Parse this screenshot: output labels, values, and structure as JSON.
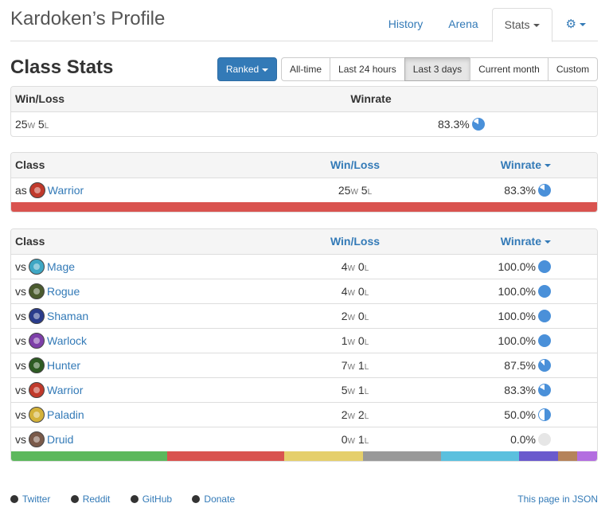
{
  "header": {
    "title": "Kardoken’s Profile",
    "tabs": [
      {
        "label": "History",
        "active": false
      },
      {
        "label": "Arena",
        "active": false
      },
      {
        "label": "Stats",
        "active": true
      }
    ],
    "settings_icon": "gear-icon"
  },
  "section": {
    "title": "Class Stats",
    "mode_label": "Ranked",
    "time_filters": [
      "All-time",
      "Last 24 hours",
      "Last 3 days",
      "Current month",
      "Custom"
    ],
    "active_time_filter": "Last 3 days"
  },
  "overall": {
    "headers": {
      "wl": "Win/Loss",
      "wr": "Winrate"
    },
    "wins": "25",
    "losses": "5",
    "winrate": "83.3%",
    "winrate_value": 0.833
  },
  "as_table": {
    "headers": {
      "cls": "Class",
      "wl": "Win/Loss",
      "wr": "Winrate"
    },
    "rows": [
      {
        "prefix": "as",
        "cls": "Warrior",
        "icon": "warrior-icon",
        "color": "#c0392b",
        "wins": "25",
        "losses": "5",
        "winrate": "83.3%",
        "winrate_value": 0.833
      }
    ],
    "bar": [
      {
        "cls": "Warrior",
        "color": "#d9534f",
        "share": 1.0
      }
    ]
  },
  "vs_table": {
    "headers": {
      "cls": "Class",
      "wl": "Win/Loss",
      "wr": "Winrate"
    },
    "rows": [
      {
        "prefix": "vs",
        "cls": "Mage",
        "icon": "mage-icon",
        "color": "#3fa7c4",
        "wins": "4",
        "losses": "0",
        "winrate": "100.0%",
        "winrate_value": 1.0
      },
      {
        "prefix": "vs",
        "cls": "Rogue",
        "icon": "rogue-icon",
        "color": "#4b5b2e",
        "wins": "4",
        "losses": "0",
        "winrate": "100.0%",
        "winrate_value": 1.0
      },
      {
        "prefix": "vs",
        "cls": "Shaman",
        "icon": "shaman-icon",
        "color": "#2a3c8c",
        "wins": "2",
        "losses": "0",
        "winrate": "100.0%",
        "winrate_value": 1.0
      },
      {
        "prefix": "vs",
        "cls": "Warlock",
        "icon": "warlock-icon",
        "color": "#7d3fa8",
        "wins": "1",
        "losses": "0",
        "winrate": "100.0%",
        "winrate_value": 1.0
      },
      {
        "prefix": "vs",
        "cls": "Hunter",
        "icon": "hunter-icon",
        "color": "#2e5b23",
        "wins": "7",
        "losses": "1",
        "winrate": "87.5%",
        "winrate_value": 0.875
      },
      {
        "prefix": "vs",
        "cls": "Warrior",
        "icon": "warrior-icon",
        "color": "#c0392b",
        "wins": "5",
        "losses": "1",
        "winrate": "83.3%",
        "winrate_value": 0.833
      },
      {
        "prefix": "vs",
        "cls": "Paladin",
        "icon": "paladin-icon",
        "color": "#d4b23a",
        "wins": "2",
        "losses": "2",
        "winrate": "50.0%",
        "winrate_value": 0.5
      },
      {
        "prefix": "vs",
        "cls": "Druid",
        "icon": "druid-icon",
        "color": "#7a5a4a",
        "wins": "0",
        "losses": "1",
        "winrate": "0.0%",
        "winrate_value": 0.0
      }
    ],
    "bar": [
      {
        "cls": "Hunter",
        "color": "#5cb85c",
        "share": 0.2667
      },
      {
        "cls": "Warrior",
        "color": "#d9534f",
        "share": 0.2
      },
      {
        "cls": "Paladin",
        "color": "#e5cf6b",
        "share": 0.1333
      },
      {
        "cls": "Rogue",
        "color": "#999999",
        "share": 0.1333
      },
      {
        "cls": "Mage",
        "color": "#5bc0de",
        "share": 0.1333
      },
      {
        "cls": "Shaman",
        "color": "#6a5acd",
        "share": 0.0667
      },
      {
        "cls": "Druid",
        "color": "#b5835a",
        "share": 0.0333
      },
      {
        "cls": "Warlock",
        "color": "#b36ee0",
        "share": 0.0333
      }
    ]
  },
  "footer": {
    "links": [
      {
        "label": "Twitter",
        "icon": "twitter-icon"
      },
      {
        "label": "Reddit",
        "icon": "reddit-icon"
      },
      {
        "label": "GitHub",
        "icon": "github-icon"
      },
      {
        "label": "Donate",
        "icon": "paypal-icon"
      }
    ],
    "json_link": "This page in JSON"
  },
  "colors": {
    "accent": "#337ab7",
    "pie": "#4a90d9",
    "pie_empty": "#e6e6e6"
  }
}
